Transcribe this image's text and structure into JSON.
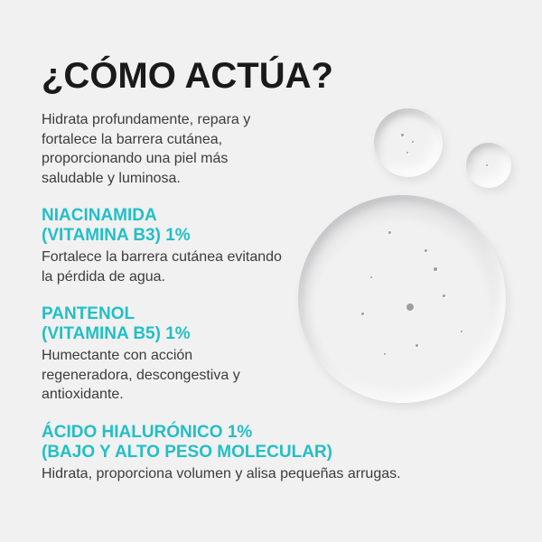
{
  "title": "¿CÓMO ACTÚA?",
  "intro": "Hidrata profundamente, repara y fortalece la barrera cutánea, proporcionando una piel más saludable y luminosa.",
  "ingredients": [
    {
      "heading_line1": "NIACINAMIDA",
      "heading_line2": "(VITAMINA B3) 1%",
      "description": "Fortalece la barrera cutánea evitando la pérdida de agua."
    },
    {
      "heading_line1": "PANTENOL",
      "heading_line2": "(VITAMINA B5) 1%",
      "description": "Humectante con acción regeneradora, descongestiva y antioxidante."
    },
    {
      "heading_line1": "ÁCIDO HIALURÓNICO 1%",
      "heading_line2": "(BAJO Y ALTO PESO MOLECULAR)",
      "description": "Hidrata, proporciona volumen y alisa pequeñas arrugas."
    }
  ],
  "colors": {
    "accent": "#22bfc6",
    "background": "#f1f1f1",
    "text": "#3c3c3c"
  }
}
